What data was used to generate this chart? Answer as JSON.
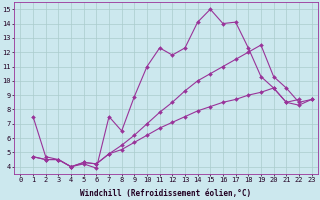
{
  "background_color": "#cce8ee",
  "grid_color": "#b8d8e0",
  "line_color": "#993399",
  "marker": "D",
  "marker_size": 2.0,
  "line_width": 0.8,
  "xlabel": "Windchill (Refroidissement éolien,°C)",
  "xlabel_fontsize": 5.5,
  "tick_fontsize": 5.0,
  "xlim": [
    -0.5,
    23.5
  ],
  "ylim": [
    3.5,
    15.5
  ],
  "yticks": [
    4,
    5,
    6,
    7,
    8,
    9,
    10,
    11,
    12,
    13,
    14,
    15
  ],
  "xticks": [
    0,
    1,
    2,
    3,
    4,
    5,
    6,
    7,
    8,
    9,
    10,
    11,
    12,
    13,
    14,
    15,
    16,
    17,
    18,
    19,
    20,
    21,
    22,
    23
  ],
  "s1_x": [
    1,
    2,
    3,
    4,
    5,
    6,
    7,
    8,
    9,
    10,
    11,
    12,
    13,
    14,
    15,
    16,
    17,
    18,
    19,
    20,
    21,
    22
  ],
  "s1_y": [
    7.5,
    4.7,
    4.5,
    4.0,
    4.2,
    3.9,
    7.5,
    6.5,
    8.9,
    11.0,
    12.3,
    11.8,
    12.3,
    14.1,
    15.0,
    14.0,
    14.1,
    12.3,
    10.3,
    9.5,
    8.5,
    8.7
  ],
  "s2_x": [
    1,
    2,
    3,
    4,
    5,
    6,
    7,
    8,
    9,
    10,
    11,
    12,
    13,
    14,
    15,
    16,
    17,
    18,
    19,
    20,
    21,
    22,
    23
  ],
  "s2_y": [
    4.7,
    4.5,
    4.5,
    4.0,
    4.3,
    4.2,
    4.9,
    5.5,
    6.2,
    7.0,
    7.8,
    8.5,
    9.3,
    10.0,
    10.5,
    11.0,
    11.5,
    12.0,
    12.5,
    10.3,
    9.5,
    8.5,
    8.7
  ],
  "s3_x": [
    1,
    2,
    3,
    4,
    5,
    6,
    7,
    8,
    9,
    10,
    11,
    12,
    13,
    14,
    15,
    16,
    17,
    18,
    19,
    20,
    21,
    22,
    23
  ],
  "s3_y": [
    4.7,
    4.5,
    4.5,
    4.0,
    4.3,
    4.2,
    4.9,
    5.2,
    5.7,
    6.2,
    6.7,
    7.1,
    7.5,
    7.9,
    8.2,
    8.5,
    8.7,
    9.0,
    9.2,
    9.5,
    8.5,
    8.3,
    8.7
  ]
}
